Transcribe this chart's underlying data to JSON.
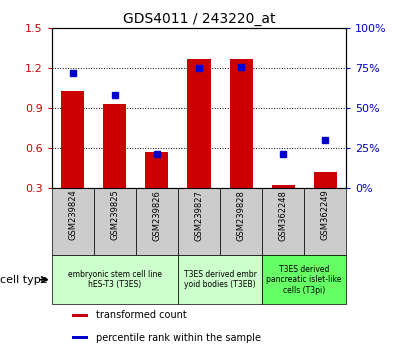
{
  "title": "GDS4011 / 243220_at",
  "samples": [
    "GSM239824",
    "GSM239825",
    "GSM239826",
    "GSM239827",
    "GSM239828",
    "GSM362248",
    "GSM362249"
  ],
  "transformed_count": [
    1.03,
    0.93,
    0.57,
    1.27,
    1.27,
    0.32,
    0.42
  ],
  "percentile_rank": [
    0.72,
    0.58,
    0.21,
    0.75,
    0.76,
    0.21,
    0.3
  ],
  "ylim_left": [
    0.3,
    1.5
  ],
  "ylim_right": [
    0,
    100
  ],
  "yticks_left": [
    0.3,
    0.6,
    0.9,
    1.2,
    1.5
  ],
  "yticks_right": [
    0,
    25,
    50,
    75,
    100
  ],
  "ytick_labels_left": [
    "0.3",
    "0.6",
    "0.9",
    "1.2",
    "1.5"
  ],
  "ytick_labels_right": [
    "0%",
    "25%",
    "50%",
    "75%",
    "100%"
  ],
  "bar_color": "#cc0000",
  "dot_color": "#0000cc",
  "tick_label_color_left": "#cc0000",
  "tick_label_color_right": "#0000cc",
  "cell_type_groups": [
    {
      "label": "embryonic stem cell line\nhES-T3 (T3ES)",
      "start": 0,
      "end": 2,
      "color": "#ccffcc"
    },
    {
      "label": "T3ES derived embr\nyoid bodies (T3EB)",
      "start": 3,
      "end": 4,
      "color": "#ccffcc"
    },
    {
      "label": "T3ES derived\npancreatic islet-like\ncells (T3pi)",
      "start": 5,
      "end": 6,
      "color": "#66ff66"
    }
  ],
  "x_tick_bg_color": "#cccccc",
  "legend_items": [
    {
      "label": "transformed count",
      "color": "#cc0000"
    },
    {
      "label": "percentile rank within the sample",
      "color": "#0000cc"
    }
  ],
  "cell_type_label": "cell type",
  "bar_width": 0.55,
  "figure_bg": "#ffffff"
}
